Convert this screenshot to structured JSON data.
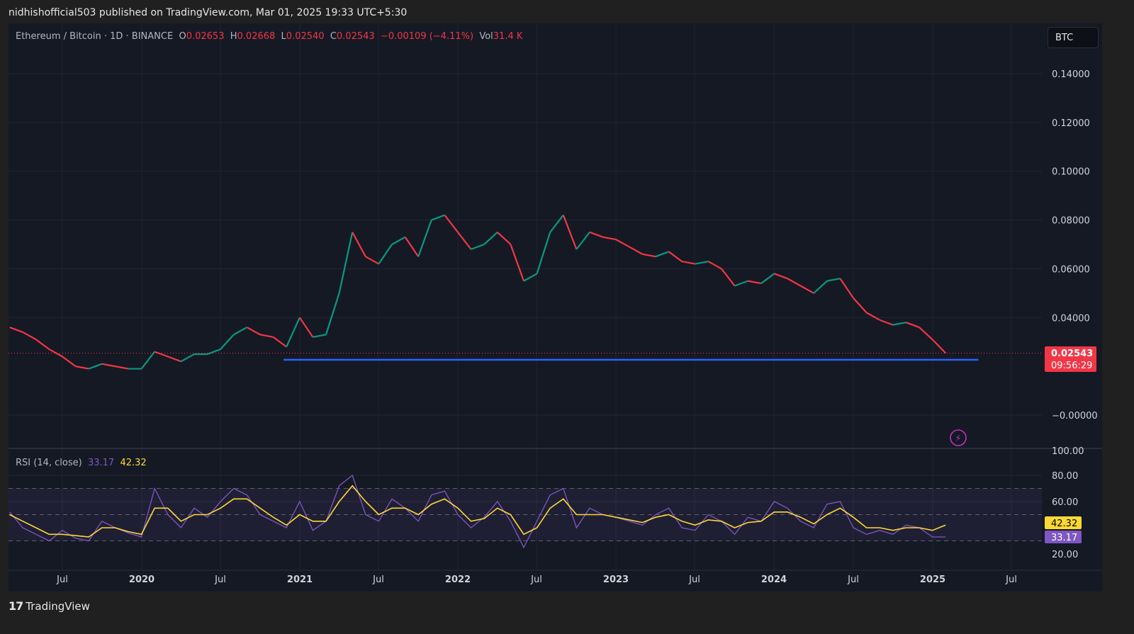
{
  "publish_line": "nidhishofficial503 published on TradingView.com, Mar 01, 2025 19:33 UTC+5:30",
  "legend": {
    "symbol": "Ethereum / Bitcoin · 1D · BINANCE",
    "o_label": "O",
    "o": "0.02653",
    "h_label": "H",
    "h": "0.02668",
    "l_label": "L",
    "l": "0.02540",
    "c_label": "C",
    "c": "0.02543",
    "change": "−0.00109 (−4.11%)",
    "vol_label": "Vol",
    "vol": "31.4 K"
  },
  "currency_button": "BTC",
  "last_price_label": {
    "price": "0.02543",
    "countdown": "09:56:29"
  },
  "rsi_legend": {
    "title": "RSI (14, close)",
    "rsi": "33.17",
    "ma": "42.32"
  },
  "rsi_badges": {
    "ma": "42.32",
    "rsi": "33.17"
  },
  "footer_brand": "TradingView",
  "colors": {
    "up": "#089981",
    "down": "#f23645",
    "support_line": "#2962ff",
    "rsi": "#7e57c2",
    "rsi_ma": "#fdd835",
    "background": "#151924"
  },
  "chart_data": [
    {
      "type": "candlestick",
      "title": "Ethereum / Bitcoin · 1D · BINANCE",
      "x_ticks": [
        "Jul",
        "2020",
        "Jul",
        "2021",
        "Jul",
        "2022",
        "Jul",
        "2023",
        "Jul",
        "2024",
        "Jul",
        "2025",
        "Jul"
      ],
      "y_ticks": [
        "0.14000",
        "0.12000",
        "0.10000",
        "0.08000",
        "0.06000",
        "0.04000",
        "−0.00000"
      ],
      "ylim": [
        0,
        0.14
      ],
      "grid": true,
      "approx_monthly_close": {
        "start": "2019-03",
        "values": [
          0.036,
          0.034,
          0.031,
          0.027,
          0.024,
          0.02,
          0.019,
          0.021,
          0.02,
          0.019,
          0.019,
          0.026,
          0.024,
          0.022,
          0.025,
          0.025,
          0.027,
          0.033,
          0.036,
          0.033,
          0.032,
          0.028,
          0.04,
          0.032,
          0.033,
          0.05,
          0.075,
          0.065,
          0.062,
          0.07,
          0.073,
          0.065,
          0.08,
          0.082,
          0.075,
          0.068,
          0.07,
          0.075,
          0.07,
          0.055,
          0.058,
          0.075,
          0.082,
          0.068,
          0.075,
          0.073,
          0.072,
          0.069,
          0.066,
          0.065,
          0.067,
          0.063,
          0.062,
          0.063,
          0.06,
          0.053,
          0.055,
          0.054,
          0.058,
          0.056,
          0.053,
          0.05,
          0.055,
          0.056,
          0.048,
          0.042,
          0.039,
          0.037,
          0.038,
          0.036,
          0.031,
          0.0254
        ]
      },
      "last_price": 0.02543,
      "support_line": {
        "price": 0.0227,
        "from": "2020-12",
        "to": "2025-04"
      }
    },
    {
      "type": "line",
      "title": "RSI (14, close)",
      "y_ticks": [
        "100.00",
        "80.00",
        "60.00",
        "20.00"
      ],
      "ylim": [
        0,
        100
      ],
      "bands": [
        70,
        50,
        30
      ],
      "start": "2019-03",
      "series": [
        {
          "name": "RSI",
          "values": [
            52,
            40,
            35,
            30,
            38,
            32,
            30,
            45,
            40,
            36,
            33,
            70,
            50,
            40,
            55,
            48,
            60,
            70,
            65,
            50,
            45,
            40,
            60,
            38,
            45,
            72,
            80,
            50,
            45,
            62,
            55,
            45,
            65,
            68,
            50,
            40,
            48,
            60,
            45,
            25,
            45,
            65,
            70,
            40,
            55,
            50,
            48,
            45,
            42,
            50,
            55,
            40,
            38,
            50,
            45,
            35,
            48,
            45,
            60,
            55,
            45,
            40,
            58,
            60,
            40,
            35,
            38,
            35,
            42,
            40,
            33,
            33
          ]
        },
        {
          "name": "RSI MA",
          "values": [
            50,
            45,
            40,
            35,
            35,
            34,
            33,
            40,
            40,
            37,
            35,
            55,
            55,
            45,
            50,
            50,
            55,
            62,
            62,
            55,
            48,
            42,
            50,
            45,
            45,
            60,
            72,
            60,
            50,
            55,
            55,
            50,
            58,
            62,
            55,
            45,
            47,
            55,
            50,
            35,
            40,
            55,
            62,
            50,
            50,
            50,
            48,
            46,
            44,
            48,
            50,
            45,
            42,
            46,
            45,
            40,
            44,
            45,
            52,
            52,
            48,
            43,
            50,
            55,
            48,
            40,
            40,
            38,
            40,
            40,
            38,
            42
          ]
        }
      ]
    }
  ]
}
